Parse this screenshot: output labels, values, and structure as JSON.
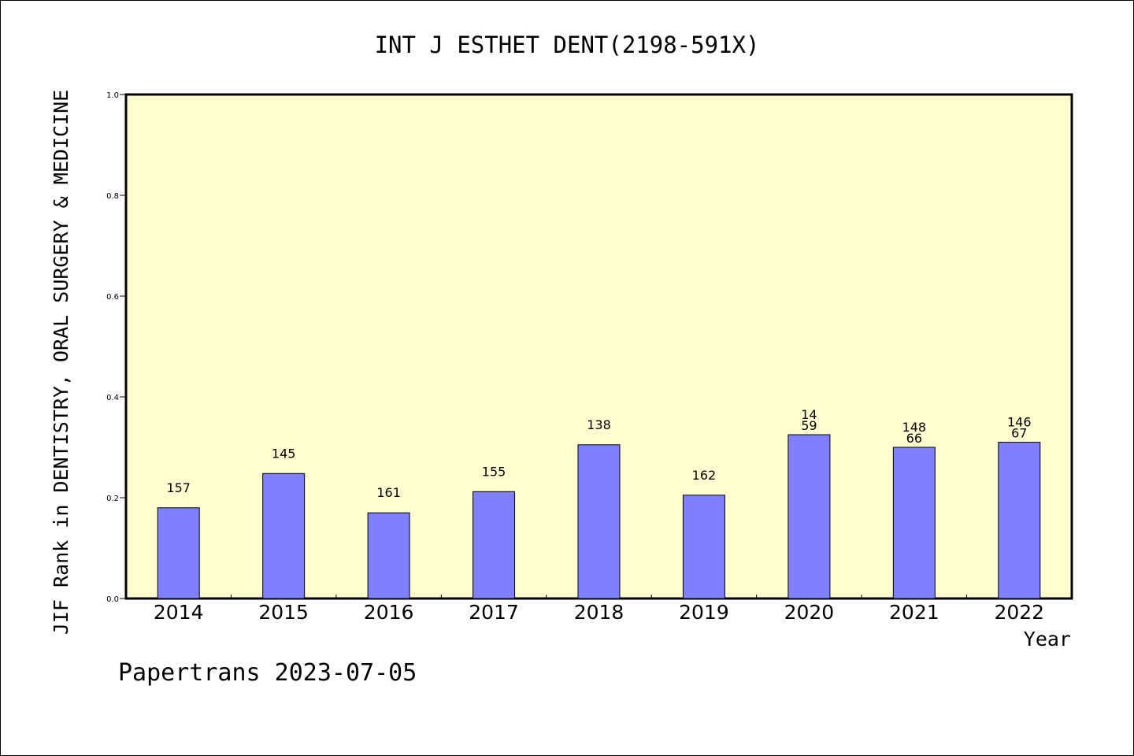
{
  "chart_data": {
    "type": "bar",
    "title": "INT J ESTHET DENT(2198-591X)",
    "xlabel": "Year",
    "ylabel": "JIF Rank in DENTISTRY, ORAL SURGERY & MEDICINE",
    "categories": [
      "2014",
      "2015",
      "2016",
      "2017",
      "2018",
      "2019",
      "2020",
      "2021",
      "2022"
    ],
    "values": [
      0.18,
      0.248,
      0.17,
      0.212,
      0.305,
      0.205,
      0.325,
      0.3,
      0.31
    ],
    "bar_labels": [
      [
        "157"
      ],
      [
        "145"
      ],
      [
        "161"
      ],
      [
        "155"
      ],
      [
        "138"
      ],
      [
        "162"
      ],
      [
        "14",
        "59"
      ],
      [
        "148",
        "66"
      ],
      [
        "146",
        "67"
      ]
    ],
    "yticks": [
      "0.0",
      "0.2",
      "0.4",
      "0.6",
      "0.8",
      "1.0"
    ],
    "ylim": [
      0,
      1
    ],
    "grid": false,
    "colors": {
      "bar": "#8080ff",
      "plot_background": "#ffffd0"
    }
  },
  "footer": {
    "stamp": "Papertrans 2023-07-05"
  }
}
